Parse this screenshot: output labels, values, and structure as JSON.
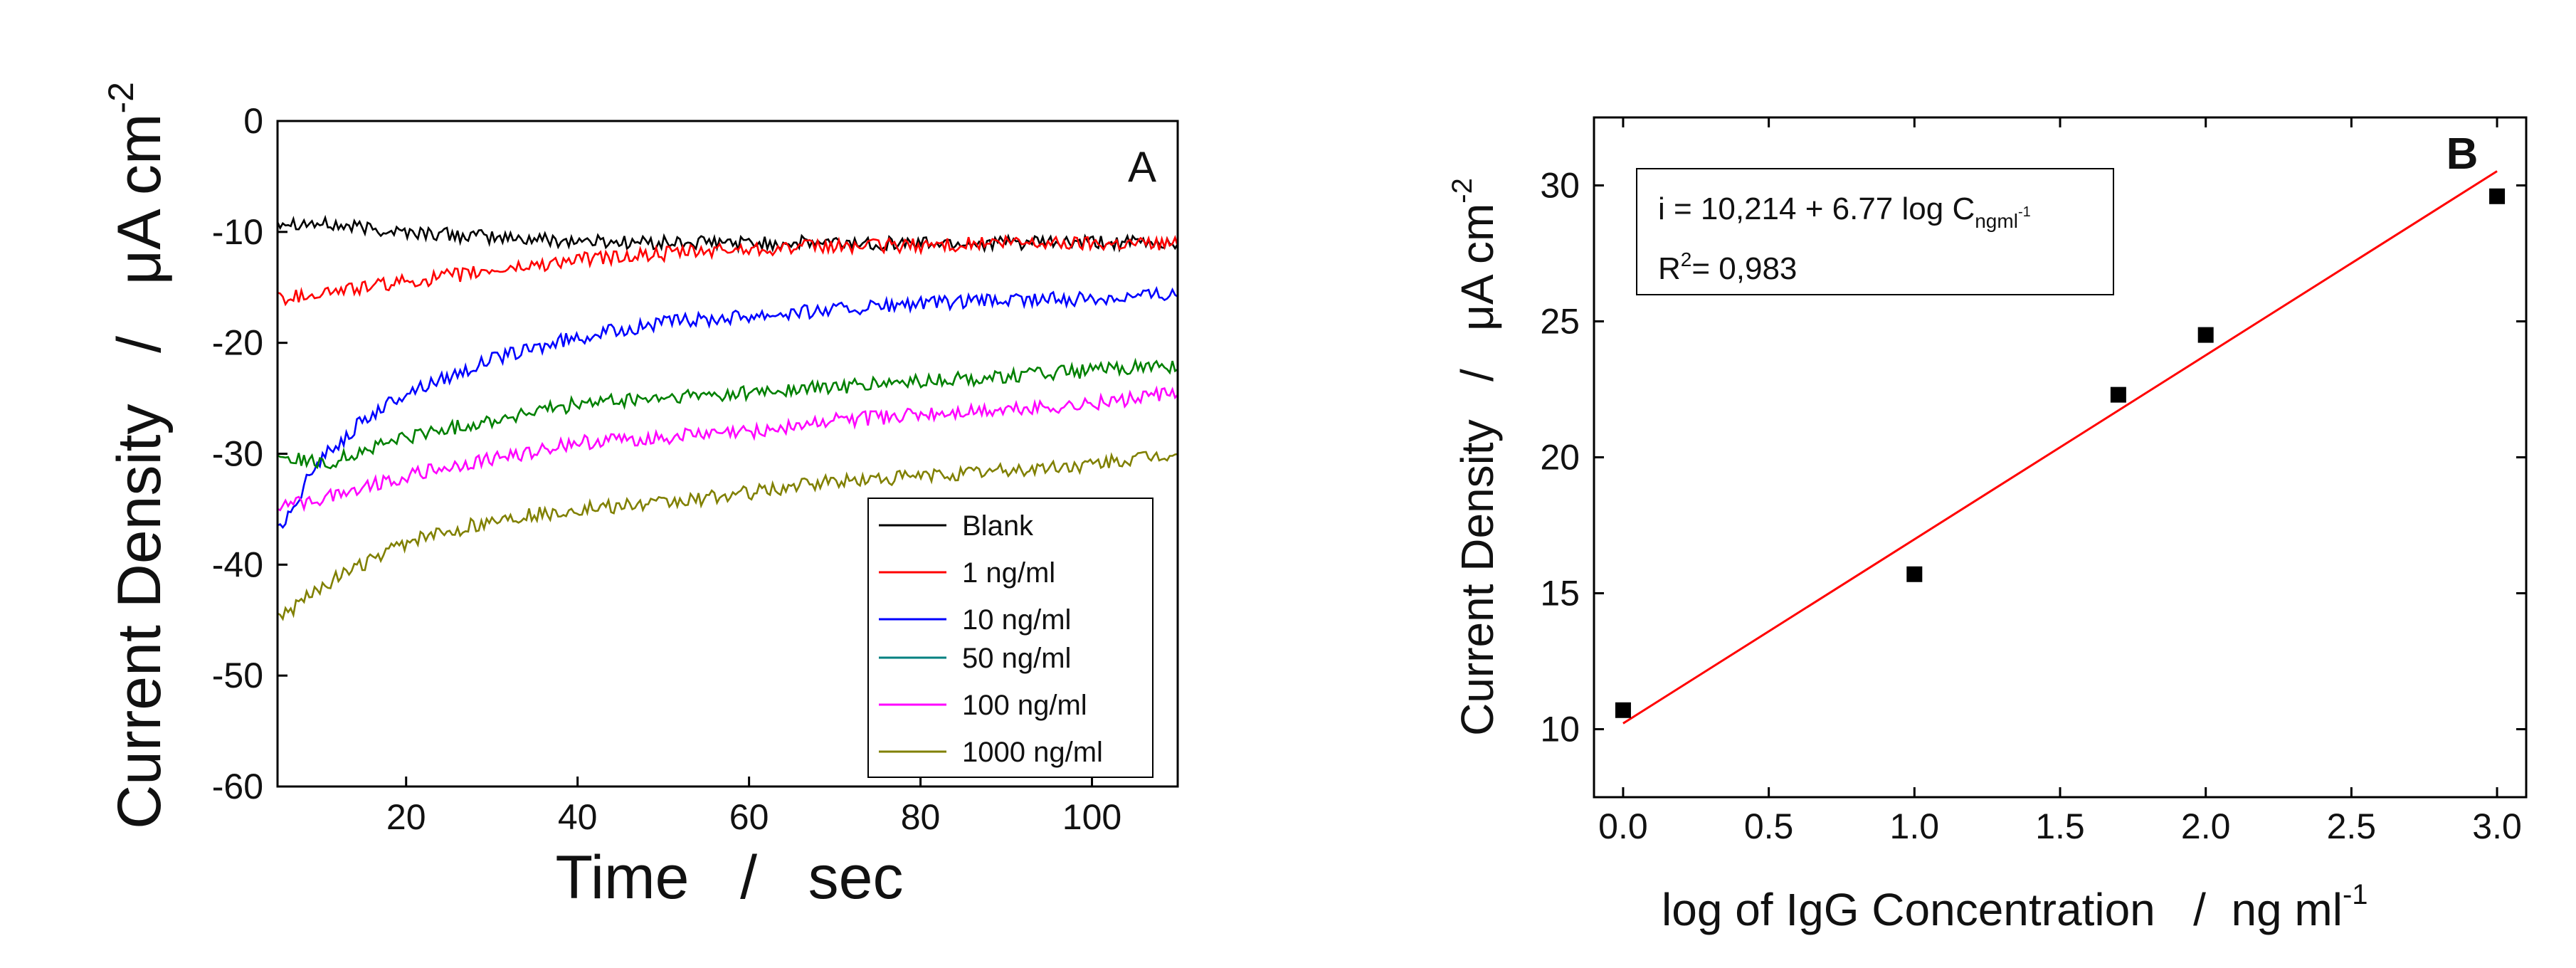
{
  "chart_data": [
    {
      "panel": "A",
      "type": "line",
      "panel_label": "A",
      "xlabel": "Time   /   sec",
      "ylabel": "Current Density   /   μA cm",
      "ylabel_sup": "-2",
      "xlim": [
        5,
        110
      ],
      "ylim": [
        -60,
        0
      ],
      "xticks": [
        20,
        40,
        60,
        80,
        100
      ],
      "xtick_labels": [
        "20",
        "40",
        "60",
        "80",
        "100"
      ],
      "yticks": [
        0,
        -10,
        -20,
        -30,
        -40,
        -50,
        -60
      ],
      "ytick_labels": [
        "0",
        "-10",
        "-20",
        "-30",
        "-40",
        "-50",
        "-60"
      ],
      "legend_position": "bottom-right",
      "series": [
        {
          "name": "Blank",
          "color": "#000000",
          "x": [
            5,
            10,
            20,
            30,
            40,
            50,
            60,
            70,
            80,
            90,
            100,
            110
          ],
          "y": [
            -9,
            -9.3,
            -10,
            -10.5,
            -10.8,
            -11,
            -11,
            -11,
            -11,
            -11,
            -11,
            -11
          ]
        },
        {
          "name": "1 ng/ml",
          "color": "#ff0000",
          "x": [
            5,
            10,
            20,
            30,
            40,
            50,
            60,
            70,
            80,
            90,
            100,
            110
          ],
          "y": [
            -16,
            -15.5,
            -14.5,
            -13.5,
            -12.5,
            -12,
            -11.5,
            -11.3,
            -11.2,
            -11,
            -11,
            -11
          ]
        },
        {
          "name": "10 ng/ml",
          "color": "#0000ff",
          "x": [
            5,
            8,
            10,
            15,
            20,
            30,
            40,
            50,
            60,
            70,
            80,
            90,
            100,
            110
          ],
          "y": [
            -37,
            -33,
            -30.5,
            -27,
            -24.5,
            -21.5,
            -19.5,
            -18.2,
            -17.5,
            -17,
            -16.5,
            -16.2,
            -16,
            -15.5
          ]
        },
        {
          "name": "50 ng/ml",
          "color": "#008000",
          "x": [
            5,
            10,
            20,
            30,
            40,
            50,
            60,
            70,
            80,
            90,
            100,
            110
          ],
          "y": [
            -30,
            -31,
            -28.5,
            -27,
            -25.5,
            -25,
            -24.5,
            -24,
            -23.5,
            -23,
            -22.5,
            -22
          ]
        },
        {
          "name": "100 ng/ml",
          "color": "#ff00ff",
          "x": [
            5,
            10,
            20,
            30,
            40,
            50,
            60,
            70,
            80,
            90,
            100,
            110
          ],
          "y": [
            -35,
            -34,
            -32,
            -30.5,
            -29,
            -28.5,
            -28,
            -27,
            -26.5,
            -26,
            -25.5,
            -24.5
          ]
        },
        {
          "name": "1000 ng/ml",
          "color": "#808000",
          "x": [
            5,
            10,
            20,
            30,
            40,
            50,
            60,
            70,
            80,
            90,
            100,
            110
          ],
          "y": [
            -45,
            -42,
            -38,
            -36,
            -35,
            -34.5,
            -33.5,
            -32.5,
            -32,
            -31.5,
            -31,
            -30
          ]
        }
      ]
    },
    {
      "panel": "B",
      "type": "scatter",
      "panel_label": "B",
      "xlabel": "log of IgG Concentration   /  ng ml",
      "xlabel_sup": "-1",
      "ylabel": "Current Density   /   μA cm",
      "ylabel_sup": "-2",
      "xlim": [
        -0.1,
        3.1
      ],
      "ylim": [
        7.5,
        32.5
      ],
      "xticks": [
        0.0,
        0.5,
        1.0,
        1.5,
        2.0,
        2.5,
        3.0
      ],
      "xtick_labels": [
        "0.0",
        "0.5",
        "1.0",
        "1.5",
        "2.0",
        "2.5",
        "3.0"
      ],
      "yticks": [
        10,
        15,
        20,
        25,
        30
      ],
      "ytick_labels": [
        "10",
        "15",
        "20",
        "25",
        "30"
      ],
      "points": {
        "x": [
          0.0,
          1.0,
          1.7,
          2.0,
          3.0
        ],
        "y": [
          10.7,
          15.7,
          22.3,
          24.5,
          29.6
        ]
      },
      "fit": {
        "intercept": 10.214,
        "slope": 6.77,
        "color": "#ff0000",
        "x_range": [
          0,
          3
        ]
      },
      "equation": {
        "line1": "i = 10,214 + 6.77 log C",
        "line1_sub": "ngml",
        "line1_subsup": "-1",
        "line2_pre": "R",
        "line2_sup": "2",
        "line2_post": "= 0,983"
      }
    }
  ]
}
